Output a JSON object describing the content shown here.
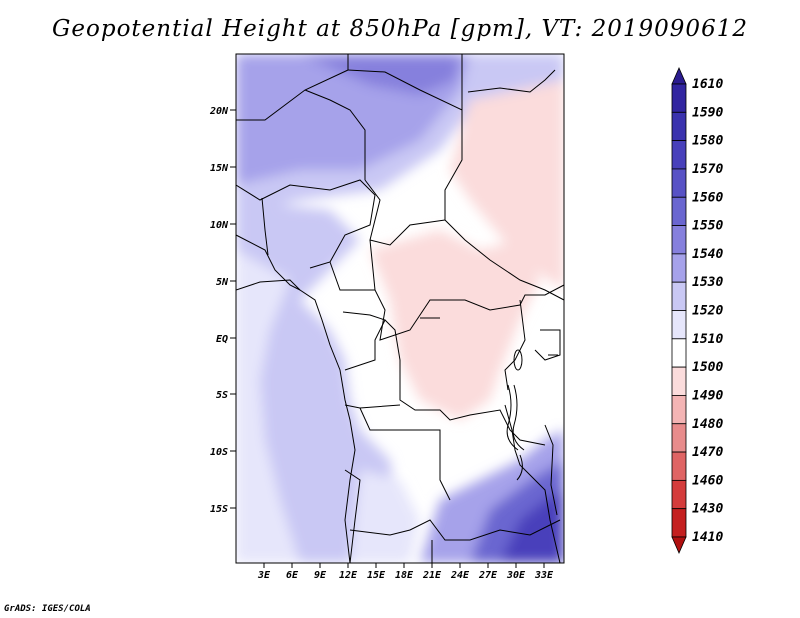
{
  "title": "Geopotential Height at 850hPa [gpm], VT: 2019090612",
  "footer": "GrADS: IGES/COLA",
  "map": {
    "lat_labels": [
      "20N",
      "15N",
      "10N",
      "5N",
      "EQ",
      "5S",
      "10S",
      "15S"
    ],
    "lon_labels": [
      "3E",
      "6E",
      "9E",
      "12E",
      "15E",
      "18E",
      "21E",
      "24E",
      "27E",
      "30E",
      "33E"
    ]
  },
  "colorbar": {
    "labels": [
      "1610",
      "1590",
      "1580",
      "1570",
      "1560",
      "1550",
      "1540",
      "1530",
      "1520",
      "1510",
      "1500",
      "1490",
      "1480",
      "1470",
      "1460",
      "1430",
      "1410"
    ],
    "colors": [
      "#2b1c8f",
      "#3125a0",
      "#3a32ae",
      "#4840bb",
      "#5852c5",
      "#6a66d0",
      "#8680dd",
      "#a6a2ea",
      "#c9c8f4",
      "#e6e6fb",
      "#ffffff",
      "#fbdcdc",
      "#f3b4b4",
      "#e88c8c",
      "#df6464",
      "#d43c3c",
      "#c42020",
      "#b01010"
    ]
  }
}
